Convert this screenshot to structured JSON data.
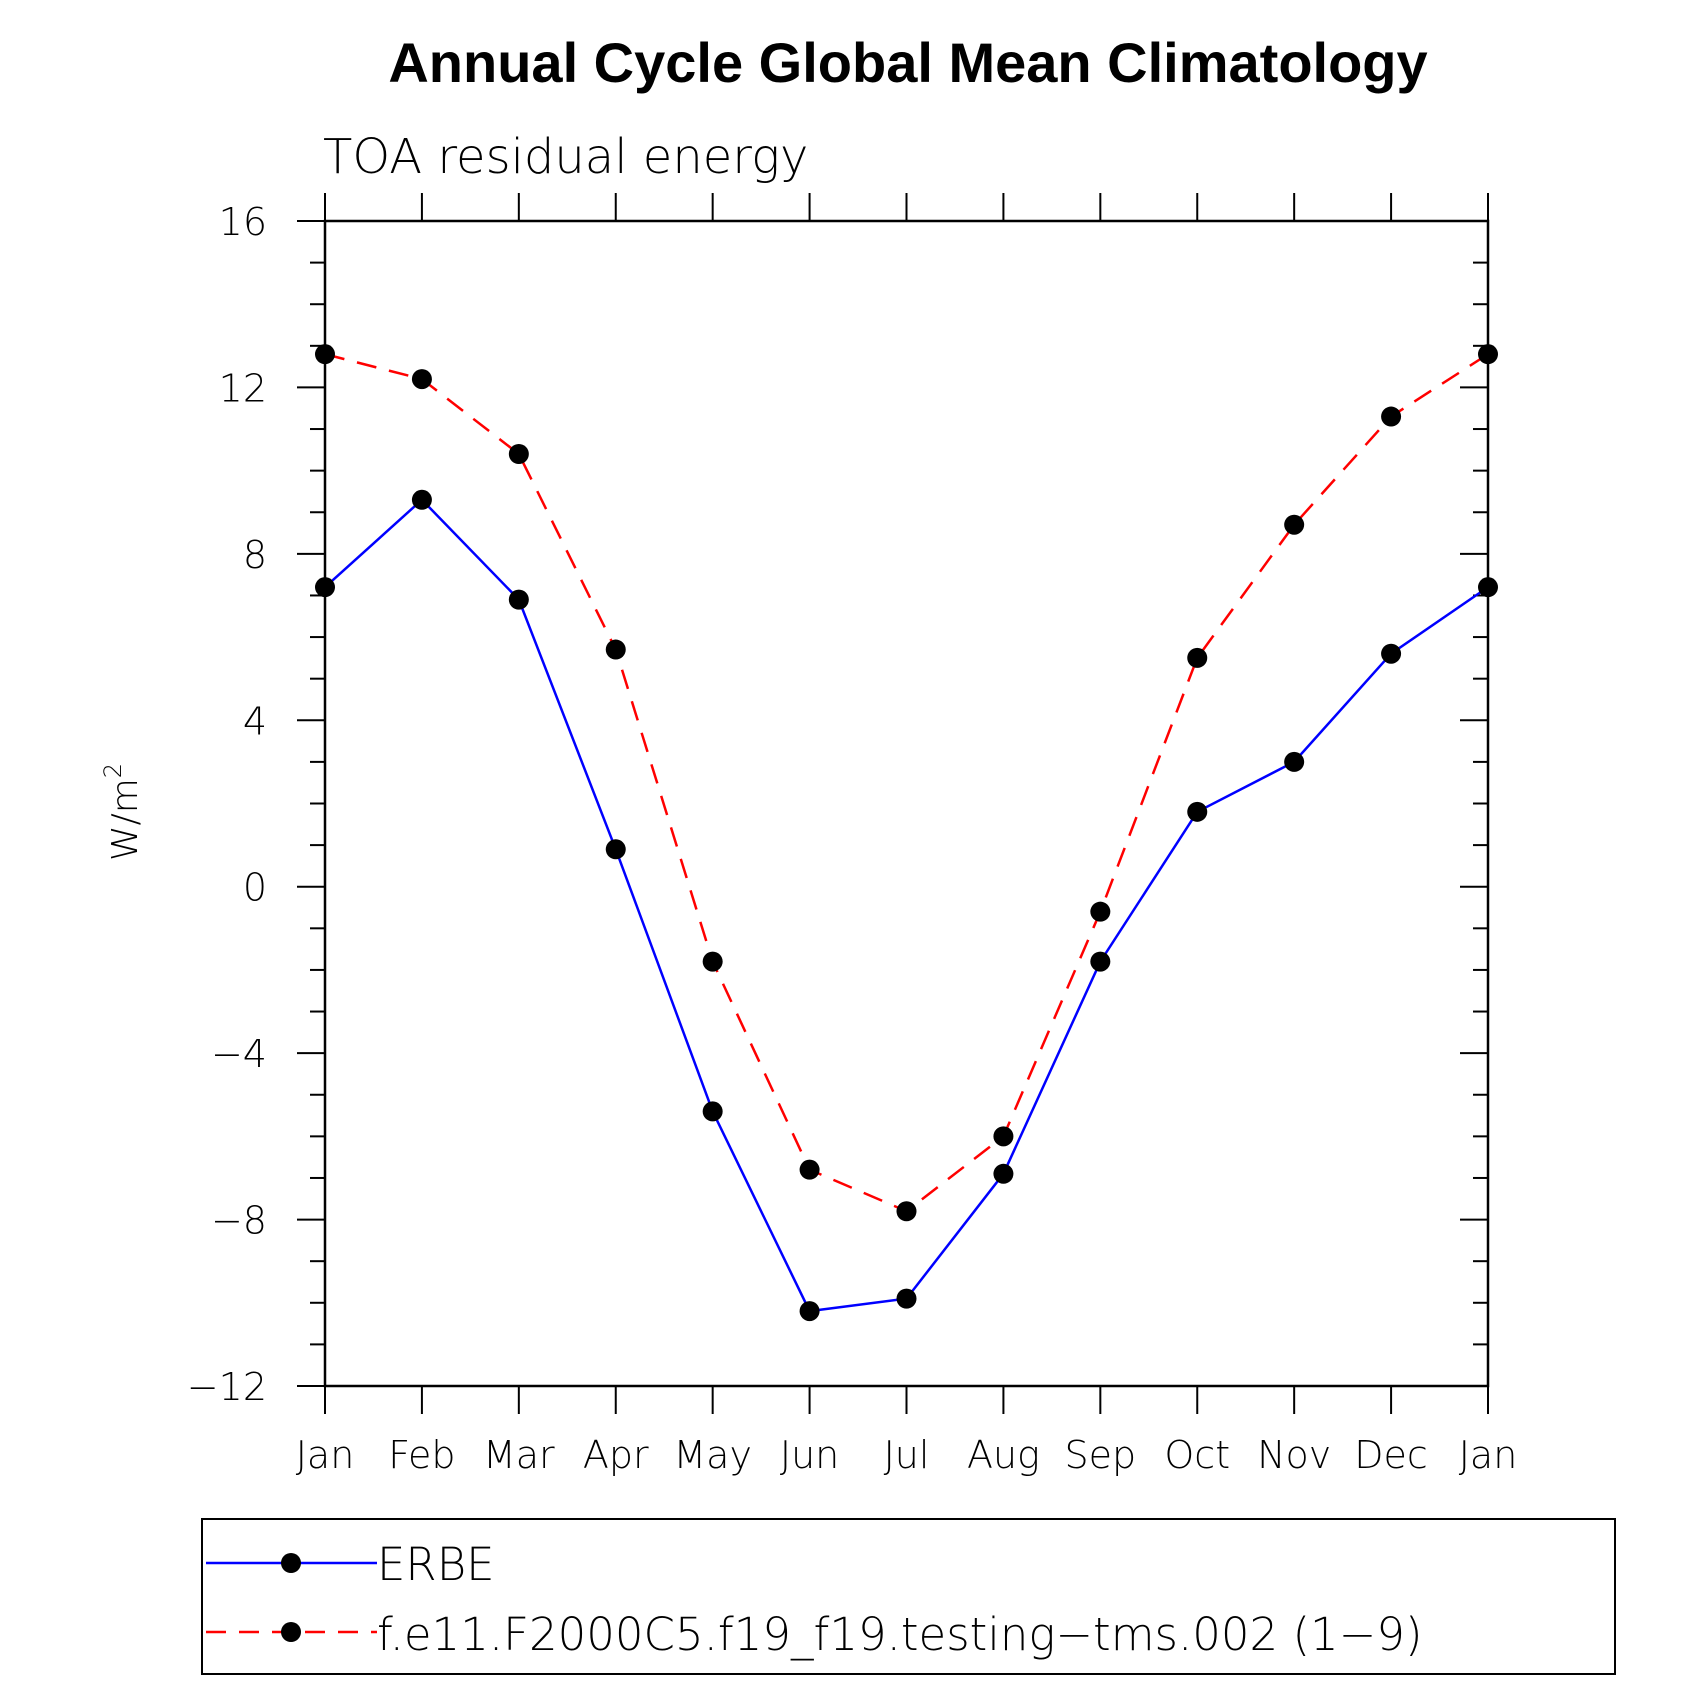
{
  "chart_data": {
    "type": "line",
    "title": "Annual Cycle Global Mean Climatology",
    "subtitle": "TOA residual energy",
    "ylabel_main": "W/m",
    "ylabel_sup": "2",
    "xlabel": "",
    "categories": [
      "Jan",
      "Feb",
      "Mar",
      "Apr",
      "May",
      "Jun",
      "Jul",
      "Aug",
      "Sep",
      "Oct",
      "Nov",
      "Dec",
      "Jan"
    ],
    "ylim": [
      -12,
      16
    ],
    "yticks": [
      -12,
      -8,
      -4,
      0,
      4,
      8,
      12,
      16
    ],
    "ytick_labels": [
      "−12",
      "−8",
      "−4",
      "0",
      "4",
      "8",
      "12",
      "16"
    ],
    "series": [
      {
        "name": "ERBE",
        "color": "#0000ff",
        "dashed": false,
        "values": [
          7.2,
          9.3,
          6.9,
          0.9,
          -5.4,
          -10.2,
          -9.9,
          -6.9,
          -1.8,
          1.8,
          3.0,
          5.6,
          7.2
        ]
      },
      {
        "name": "f.e11.F2000C5.f19_f19.testing−tms.002 (1−9)",
        "color": "#ff0000",
        "dashed": true,
        "values": [
          12.8,
          12.2,
          10.4,
          5.7,
          -1.8,
          -6.8,
          -7.8,
          -6.0,
          -0.6,
          5.5,
          8.7,
          11.3,
          12.8
        ]
      }
    ],
    "legend_position": "bottom",
    "marker_color": "#000000"
  }
}
